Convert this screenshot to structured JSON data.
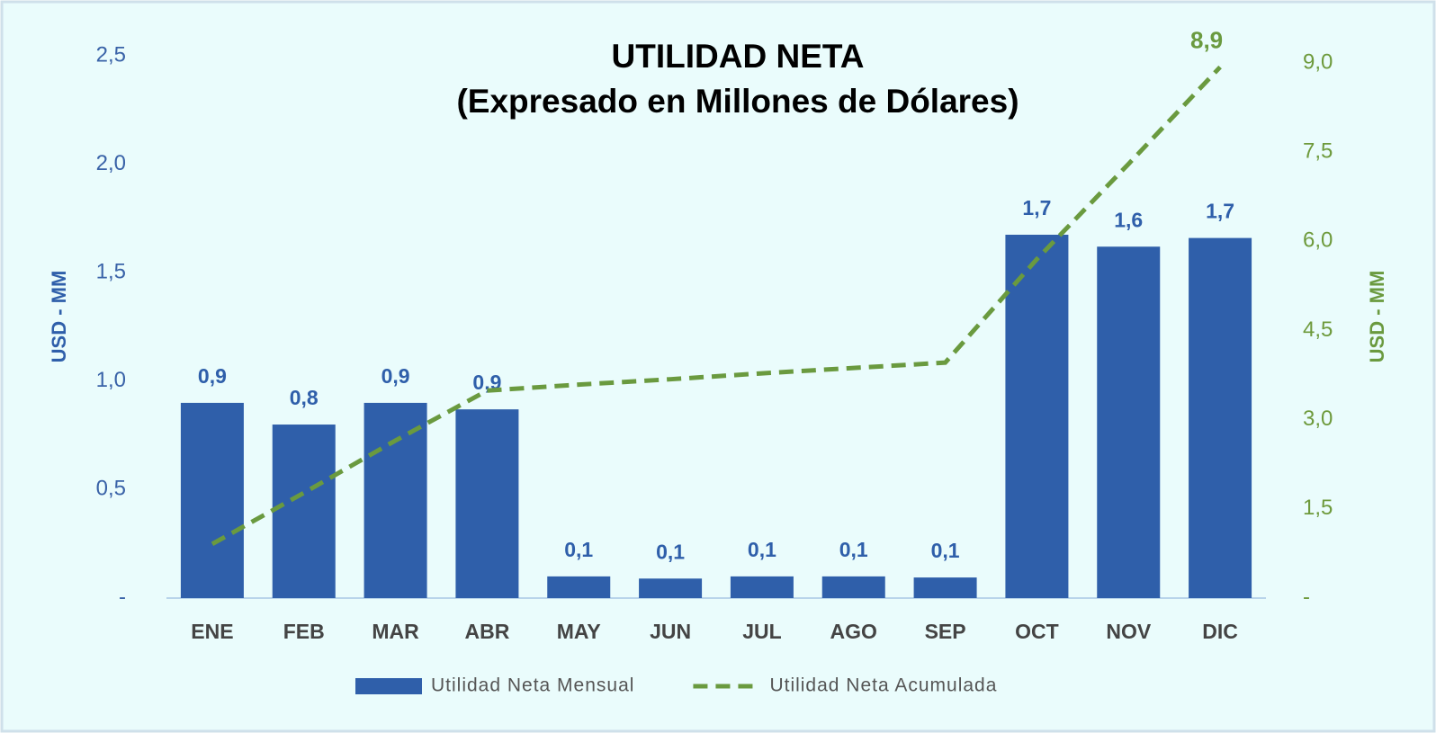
{
  "chart_data": {
    "type": "bar_line",
    "title": "UTILIDAD NETA",
    "subtitle": "(Expresado en Millones de Dólares)",
    "ylabel": "USD - MM",
    "y2label": "USD - MM",
    "categories": [
      "ENE",
      "FEB",
      "MAR",
      "ABR",
      "MAY",
      "JUN",
      "JUL",
      "AGO",
      "SEP",
      "OCT",
      "NOV",
      "DIC"
    ],
    "series": [
      {
        "name": "Utilidad Neta Mensual",
        "type": "bar",
        "color": "#2f5faa",
        "values": [
          0.9,
          0.8,
          0.9,
          0.87,
          0.1,
          0.09,
          0.1,
          0.1,
          0.095,
          1.675,
          1.62,
          1.66
        ],
        "value_labels": [
          "0,9",
          "0,8",
          "0,9",
          "0,9",
          "0,1",
          "0,1",
          "0,1",
          "0,1",
          "0,1",
          "1,7",
          "1,6",
          "1,7"
        ]
      },
      {
        "name": "Utilidad Neta Acumulada",
        "type": "line",
        "axis": "y2",
        "color": "#6a9a3f",
        "dashed": true,
        "values": [
          0.91,
          1.77,
          2.65,
          3.49,
          3.59,
          3.68,
          3.78,
          3.87,
          3.96,
          5.7,
          7.3,
          8.93
        ],
        "value_labels": [
          null,
          null,
          null,
          null,
          null,
          null,
          null,
          null,
          null,
          null,
          null,
          "8,9"
        ]
      }
    ],
    "ylim": [
      0,
      2.5
    ],
    "yticks": [
      {
        "value": 0,
        "label": "-"
      },
      {
        "value": 0.5,
        "label": "0,5"
      },
      {
        "value": 1.0,
        "label": "1,0"
      },
      {
        "value": 1.5,
        "label": "1,5"
      },
      {
        "value": 2.0,
        "label": "2,0"
      },
      {
        "value": 2.5,
        "label": "2,5"
      }
    ],
    "y2lim": [
      0,
      9.12
    ],
    "y2ticks": [
      {
        "value": 0,
        "label": "-"
      },
      {
        "value": 1.5,
        "label": "1,5"
      },
      {
        "value": 3.0,
        "label": "3,0"
      },
      {
        "value": 4.5,
        "label": "4,5"
      },
      {
        "value": 6.0,
        "label": "6,0"
      },
      {
        "value": 7.5,
        "label": "7,5"
      },
      {
        "value": 9.0,
        "label": "9,0"
      }
    ],
    "grid": false,
    "legend": "bottom"
  }
}
